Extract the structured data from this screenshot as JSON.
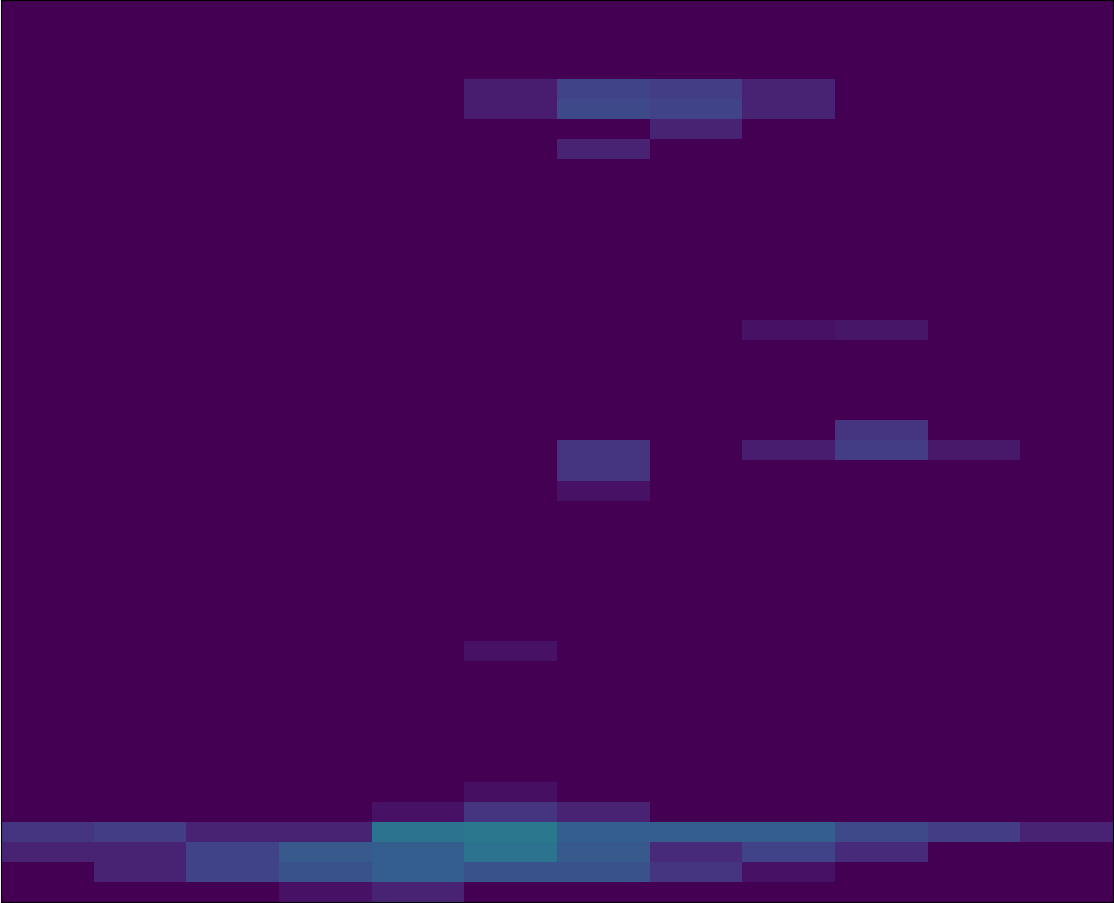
{
  "chart_data": {
    "type": "heatmap",
    "color": "viridis",
    "tick_labels": false,
    "color_range": [
      0,
      1
    ],
    "cells": [
      [
        0,
        0,
        0,
        0,
        0,
        0,
        0,
        0,
        0,
        0,
        0,
        0
      ],
      [
        0,
        0,
        0,
        0,
        0,
        0,
        0,
        0,
        0,
        0,
        0,
        0
      ],
      [
        0,
        0,
        0,
        0,
        0,
        0,
        0,
        0,
        0,
        0,
        0,
        0
      ],
      [
        0,
        0,
        0,
        0,
        0,
        0,
        0,
        0,
        0,
        0,
        0,
        0
      ],
      [
        0,
        0,
        0,
        0,
        0,
        0.08,
        0.2,
        0.18,
        0.1,
        0,
        0,
        0
      ],
      [
        0,
        0,
        0,
        0,
        0,
        0.08,
        0.22,
        0.2,
        0.1,
        0,
        0,
        0
      ],
      [
        0,
        0,
        0,
        0,
        0,
        0,
        0,
        0.1,
        0,
        0,
        0,
        0
      ],
      [
        0,
        0,
        0,
        0,
        0,
        0,
        0.1,
        0,
        0,
        0,
        0,
        0
      ],
      [
        0,
        0,
        0,
        0,
        0,
        0,
        0,
        0,
        0,
        0,
        0,
        0
      ],
      [
        0,
        0,
        0,
        0,
        0,
        0,
        0,
        0,
        0,
        0,
        0,
        0
      ],
      [
        0,
        0,
        0,
        0,
        0,
        0,
        0,
        0,
        0,
        0,
        0,
        0
      ],
      [
        0,
        0,
        0,
        0,
        0,
        0,
        0,
        0,
        0,
        0,
        0,
        0
      ],
      [
        0,
        0,
        0,
        0,
        0,
        0,
        0,
        0,
        0,
        0,
        0,
        0
      ],
      [
        0,
        0,
        0,
        0,
        0,
        0,
        0,
        0,
        0,
        0,
        0,
        0
      ],
      [
        0,
        0,
        0,
        0,
        0,
        0,
        0,
        0,
        0,
        0,
        0,
        0
      ],
      [
        0,
        0,
        0,
        0,
        0,
        0,
        0,
        0,
        0,
        0,
        0,
        0
      ],
      [
        0,
        0,
        0,
        0,
        0,
        0,
        0,
        0,
        0.05,
        0.06,
        0,
        0
      ],
      [
        0,
        0,
        0,
        0,
        0,
        0,
        0,
        0,
        0,
        0,
        0,
        0
      ],
      [
        0,
        0,
        0,
        0,
        0,
        0,
        0,
        0,
        0,
        0,
        0,
        0
      ],
      [
        0,
        0,
        0,
        0,
        0,
        0,
        0,
        0,
        0,
        0,
        0,
        0
      ],
      [
        0,
        0,
        0,
        0,
        0,
        0,
        0,
        0,
        0,
        0,
        0,
        0
      ],
      [
        0,
        0,
        0,
        0,
        0,
        0,
        0,
        0,
        0,
        0.15,
        0,
        0
      ],
      [
        0,
        0,
        0,
        0,
        0,
        0,
        0.15,
        0,
        0.08,
        0.18,
        0.07,
        0
      ],
      [
        0,
        0,
        0,
        0,
        0,
        0,
        0.15,
        0,
        0,
        0,
        0,
        0
      ],
      [
        0,
        0,
        0,
        0,
        0,
        0,
        0.05,
        0,
        0,
        0,
        0,
        0
      ],
      [
        0,
        0,
        0,
        0,
        0,
        0,
        0,
        0,
        0,
        0,
        0,
        0
      ],
      [
        0,
        0,
        0,
        0,
        0,
        0,
        0,
        0,
        0,
        0,
        0,
        0
      ],
      [
        0,
        0,
        0,
        0,
        0,
        0,
        0,
        0,
        0,
        0,
        0,
        0
      ],
      [
        0,
        0,
        0,
        0,
        0,
        0,
        0,
        0,
        0,
        0,
        0,
        0
      ],
      [
        0,
        0,
        0,
        0,
        0,
        0,
        0,
        0,
        0,
        0,
        0,
        0
      ],
      [
        0,
        0,
        0,
        0,
        0,
        0,
        0,
        0,
        0,
        0,
        0,
        0
      ],
      [
        0,
        0,
        0,
        0,
        0,
        0,
        0,
        0,
        0,
        0,
        0,
        0
      ],
      [
        0,
        0,
        0,
        0,
        0,
        0.05,
        0,
        0,
        0,
        0,
        0,
        0
      ],
      [
        0,
        0,
        0,
        0,
        0,
        0,
        0,
        0,
        0,
        0,
        0,
        0
      ],
      [
        0,
        0,
        0,
        0,
        0,
        0,
        0,
        0,
        0,
        0,
        0,
        0
      ],
      [
        0,
        0,
        0,
        0,
        0,
        0,
        0,
        0,
        0,
        0,
        0,
        0
      ],
      [
        0,
        0,
        0,
        0,
        0,
        0,
        0,
        0,
        0,
        0,
        0,
        0
      ],
      [
        0,
        0,
        0,
        0,
        0,
        0,
        0,
        0,
        0,
        0,
        0,
        0
      ],
      [
        0,
        0,
        0,
        0,
        0,
        0,
        0,
        0,
        0,
        0,
        0,
        0
      ],
      [
        0,
        0,
        0,
        0,
        0,
        0.04,
        0,
        0,
        0,
        0,
        0,
        0
      ],
      [
        0,
        0,
        0,
        0,
        0.05,
        0.15,
        0.1,
        0,
        0,
        0,
        0,
        0
      ],
      [
        0.15,
        0.18,
        0.1,
        0.1,
        0.38,
        0.4,
        0.3,
        0.3,
        0.3,
        0.22,
        0.18,
        0.1
      ],
      [
        0.1,
        0.1,
        0.2,
        0.28,
        0.3,
        0.38,
        0.28,
        0.12,
        0.2,
        0.12,
        0,
        0
      ],
      [
        0,
        0.1,
        0.2,
        0.25,
        0.3,
        0.25,
        0.25,
        0.15,
        0.05,
        0,
        0,
        0
      ],
      [
        0,
        0,
        0,
        0.05,
        0.1,
        0,
        0,
        0,
        0,
        0,
        0,
        0
      ]
    ]
  }
}
